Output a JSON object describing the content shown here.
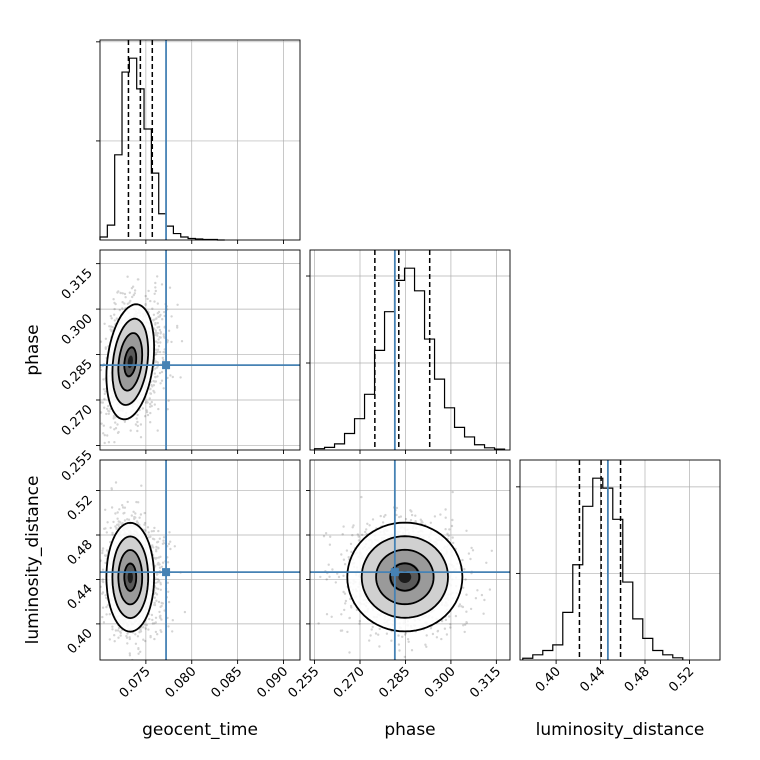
{
  "chart_data": {
    "type": "corner",
    "parameters": [
      "geocent_time",
      "phase",
      "luminosity_distance"
    ],
    "truth_color": "#4682b4",
    "truths": {
      "geocent_time": 0.0772,
      "phase": 0.2815,
      "luminosity_distance": 0.4466
    },
    "ranges": {
      "geocent_time": [
        0.07,
        0.0918
      ],
      "phase": [
        0.2535,
        0.3195
      ],
      "luminosity_distance": [
        0.3675,
        0.5475
      ]
    },
    "ticks": {
      "geocent_time": {
        "values": [
          0.075,
          0.08,
          0.085,
          0.09
        ],
        "labels": [
          "0.075",
          "0.080",
          "0.085",
          "0.090"
        ]
      },
      "phase": {
        "values": [
          0.255,
          0.27,
          0.285,
          0.3,
          0.315
        ],
        "labels": [
          "0.255",
          "0.270",
          "0.285",
          "0.300",
          "0.315"
        ]
      },
      "luminosity_distance": {
        "values": [
          0.4,
          0.44,
          0.48,
          0.52
        ],
        "labels": [
          "0.40",
          "0.44",
          "0.48",
          "0.52"
        ]
      }
    },
    "quantiles": {
      "geocent_time": [
        0.0731,
        0.0744,
        0.0757
      ],
      "phase": [
        0.2749,
        0.2828,
        0.293
      ],
      "luminosity_distance": [
        0.421,
        0.4405,
        0.458
      ]
    },
    "histograms": {
      "geocent_time": {
        "edges": [
          0.07,
          0.0708,
          0.0716,
          0.0724,
          0.0732,
          0.074,
          0.0748,
          0.0756,
          0.0764,
          0.0772,
          0.078,
          0.0788,
          0.0796,
          0.0804,
          0.0812,
          0.082,
          0.0828,
          0.0836
        ],
        "counts": [
          6,
          30,
          172,
          339,
          367,
          305,
          224,
          135,
          53,
          28,
          13,
          6,
          3,
          2,
          1,
          1,
          0
        ]
      },
      "phase": {
        "edges": [
          0.255,
          0.2583,
          0.2616,
          0.2649,
          0.2682,
          0.2715,
          0.2748,
          0.2781,
          0.2814,
          0.2847,
          0.288,
          0.2913,
          0.2946,
          0.2979,
          0.3012,
          0.3045,
          0.3078,
          0.3111,
          0.3144,
          0.3177
        ],
        "counts": [
          3,
          6,
          14,
          38,
          72,
          128,
          229,
          318,
          390,
          418,
          366,
          255,
          163,
          97,
          52,
          30,
          12,
          5,
          2
        ]
      },
      "luminosity_distance": {
        "edges": [
          0.37,
          0.379,
          0.388,
          0.397,
          0.406,
          0.415,
          0.424,
          0.433,
          0.442,
          0.451,
          0.46,
          0.469,
          0.478,
          0.487,
          0.496,
          0.505,
          0.514
        ],
        "counts": [
          4,
          12,
          22,
          35,
          110,
          220,
          355,
          420,
          397,
          325,
          180,
          95,
          50,
          22,
          12,
          5
        ]
      }
    },
    "density_2d": [
      {
        "x": "geocent_time",
        "y": "phase",
        "center": [
          0.0733,
          0.2826
        ],
        "sigma": [
          0.0013,
          0.0095
        ],
        "rho": 0.25
      },
      {
        "x": "geocent_time",
        "y": "luminosity_distance",
        "center": [
          0.0733,
          0.442
        ],
        "sigma": [
          0.0013,
          0.0245
        ],
        "rho": 0.0
      },
      {
        "x": "phase",
        "y": "luminosity_distance",
        "center": [
          0.2848,
          0.4422
        ],
        "sigma": [
          0.0095,
          0.0245
        ],
        "rho": 0.0
      }
    ],
    "contour_levels_sigma": [
      0.5,
      1.0,
      1.5,
      2.0
    ],
    "grid": true,
    "legend": "none"
  }
}
